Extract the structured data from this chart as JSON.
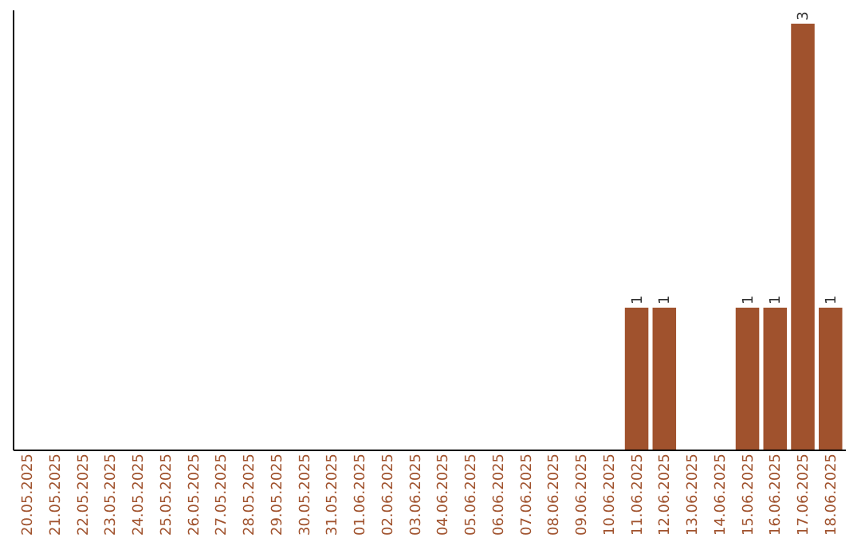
{
  "chart_data": {
    "type": "bar",
    "categories": [
      "20.05.2025",
      "21.05.2025",
      "22.05.2025",
      "23.05.2025",
      "24.05.2025",
      "25.05.2025",
      "26.05.2025",
      "27.05.2025",
      "28.05.2025",
      "29.05.2025",
      "30.05.2025",
      "31.05.2025",
      "01.06.2025",
      "02.06.2025",
      "03.06.2025",
      "04.06.2025",
      "05.06.2025",
      "06.06.2025",
      "07.06.2025",
      "08.06.2025",
      "09.06.2025",
      "10.06.2025",
      "11.06.2025",
      "12.06.2025",
      "13.06.2025",
      "14.06.2025",
      "15.06.2025",
      "16.06.2025",
      "17.06.2025",
      "18.06.2025"
    ],
    "values": [
      null,
      null,
      null,
      null,
      null,
      null,
      null,
      null,
      null,
      null,
      null,
      null,
      null,
      null,
      null,
      null,
      null,
      null,
      null,
      null,
      null,
      null,
      1,
      1,
      null,
      null,
      1,
      1,
      3,
      1
    ],
    "data_labels": true,
    "color": "#a0522d",
    "ylim": [
      0,
      3.1
    ],
    "tick_labels": "x",
    "grid": false
  }
}
